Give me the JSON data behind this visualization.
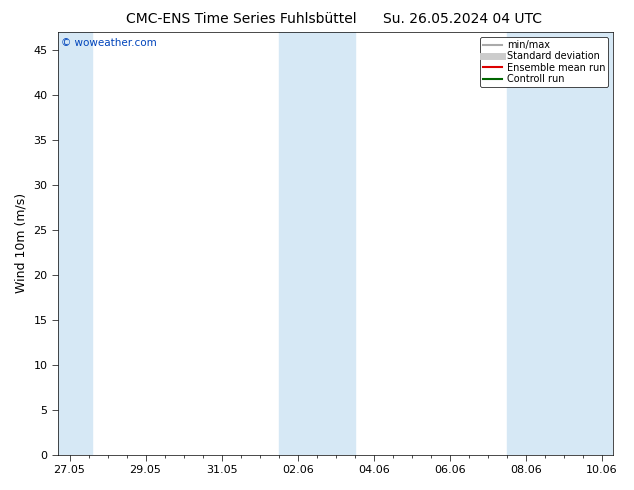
{
  "title_left": "CMC-ENS Time Series Fuhlsbüttel",
  "title_right": "Su. 26.05.2024 04 UTC",
  "ylabel": "Wind 10m (m/s)",
  "watermark": "© woweather.com",
  "x_tick_labels": [
    "27.05",
    "29.05",
    "31.05",
    "02.06",
    "04.06",
    "06.06",
    "08.06",
    "10.06"
  ],
  "x_tick_positions": [
    0,
    2,
    4,
    6,
    8,
    10,
    12,
    14
  ],
  "ylim": [
    0,
    47
  ],
  "yticks": [
    0,
    5,
    10,
    15,
    20,
    25,
    30,
    35,
    40,
    45
  ],
  "xlim": [
    -0.3,
    14.3
  ],
  "shaded_color": "#d6e8f5",
  "bg_color": "#ffffff",
  "plot_bg_color": "#ffffff",
  "legend_items": [
    {
      "label": "min/max",
      "color": "#aaaaaa",
      "lw": 1.5
    },
    {
      "label": "Standard deviation",
      "color": "#cccccc",
      "lw": 5
    },
    {
      "label": "Ensemble mean run",
      "color": "#dd0000",
      "lw": 1.5
    },
    {
      "label": "Controll run",
      "color": "#006600",
      "lw": 1.5
    }
  ],
  "title_fontsize": 10,
  "label_fontsize": 9,
  "tick_fontsize": 8,
  "watermark_color": "#0044bb",
  "shaded_bands": [
    {
      "x_start": -0.3,
      "x_end": 0.6
    },
    {
      "x_start": 5.5,
      "x_end": 7.5
    },
    {
      "x_start": 11.5,
      "x_end": 14.3
    }
  ]
}
